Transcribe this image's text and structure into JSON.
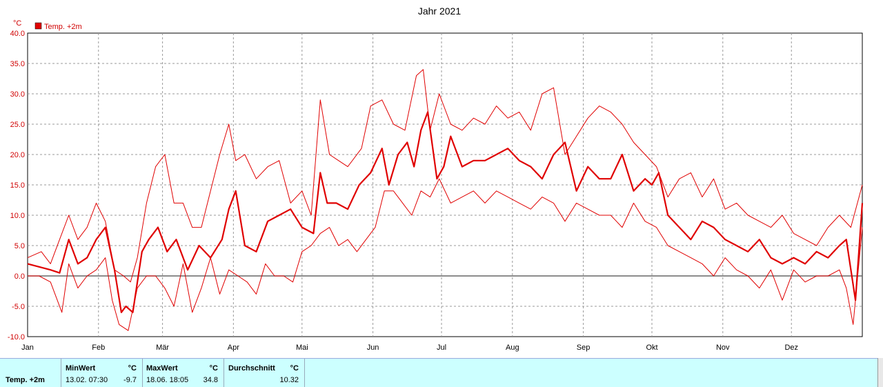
{
  "chart_data": {
    "type": "line",
    "title": "Jahr 2021",
    "yunit": "°C",
    "ylim": [
      -10,
      40
    ],
    "yticks": [
      "-10.0",
      "-5.0",
      "0.0",
      "5.0",
      "10.0",
      "15.0",
      "20.0",
      "25.0",
      "30.0",
      "35.0",
      "40.0"
    ],
    "x_range_days": [
      0,
      365
    ],
    "month_ticks": [
      {
        "label": "Jan",
        "day": 0
      },
      {
        "label": "Feb",
        "day": 31
      },
      {
        "label": "Mär",
        "day": 59
      },
      {
        "label": "Apr",
        "day": 90
      },
      {
        "label": "Mai",
        "day": 120
      },
      {
        "label": "Jun",
        "day": 151
      },
      {
        "label": "Jul",
        "day": 181
      },
      {
        "label": "Aug",
        "day": 212
      },
      {
        "label": "Sep",
        "day": 243
      },
      {
        "label": "Okt",
        "day": 273
      },
      {
        "label": "Nov",
        "day": 304
      },
      {
        "label": "Dez",
        "day": 334
      }
    ],
    "legend": {
      "label": "Temp. +2m",
      "color": "#e00000",
      "position": "top-left"
    },
    "grid": true,
    "series": [
      {
        "name": "Temp. +2m",
        "role": "mean",
        "color": "#e00000",
        "x": [
          0,
          5,
          10,
          14,
          18,
          22,
          26,
          30,
          34,
          38,
          41,
          43,
          46,
          50,
          53,
          57,
          61,
          65,
          70,
          75,
          80,
          85,
          88,
          91,
          95,
          100,
          105,
          110,
          115,
          120,
          125,
          128,
          131,
          135,
          140,
          145,
          150,
          155,
          158,
          162,
          166,
          169,
          172,
          175,
          179,
          182,
          185,
          190,
          195,
          200,
          205,
          210,
          215,
          220,
          225,
          230,
          235,
          240,
          245,
          250,
          255,
          260,
          265,
          270,
          273,
          276,
          280,
          285,
          290,
          295,
          300,
          305,
          310,
          315,
          320,
          325,
          330,
          335,
          340,
          345,
          350,
          355,
          358,
          362,
          365
        ],
        "y": [
          2,
          1.5,
          1,
          0.5,
          6,
          2,
          3,
          6,
          8,
          1,
          -6,
          -5,
          -6,
          4,
          6,
          8,
          4,
          6,
          1,
          5,
          3,
          6,
          11,
          14,
          5,
          4,
          9,
          10,
          11,
          8,
          7,
          17,
          12,
          12,
          11,
          15,
          17,
          21,
          15,
          20,
          22,
          18,
          24,
          27,
          16,
          18,
          23,
          18,
          19,
          19,
          20,
          21,
          19,
          18,
          16,
          20,
          22,
          14,
          18,
          16,
          16,
          20,
          14,
          16,
          15,
          17,
          10,
          8,
          6,
          9,
          8,
          6,
          5,
          4,
          6,
          3,
          2,
          3,
          2,
          4,
          3,
          5,
          6,
          -4,
          12
        ]
      },
      {
        "name": "",
        "role": "max",
        "color": "#e00000",
        "x": [
          0,
          6,
          10,
          14,
          18,
          22,
          26,
          30,
          34,
          38,
          42,
          45,
          48,
          52,
          56,
          60,
          64,
          68,
          72,
          76,
          80,
          84,
          88,
          91,
          95,
          100,
          105,
          110,
          115,
          120,
          124,
          128,
          132,
          136,
          140,
          146,
          150,
          155,
          160,
          165,
          170,
          173,
          176,
          180,
          185,
          190,
          195,
          200,
          205,
          210,
          215,
          220,
          225,
          230,
          235,
          240,
          245,
          250,
          255,
          260,
          265,
          270,
          275,
          280,
          285,
          290,
          295,
          300,
          305,
          310,
          315,
          320,
          325,
          330,
          335,
          340,
          345,
          350,
          355,
          360,
          365
        ],
        "y": [
          3,
          4,
          2,
          6,
          10,
          6,
          8,
          12,
          9,
          1,
          0,
          -1,
          3,
          12,
          18,
          20,
          12,
          12,
          8,
          8,
          14,
          20,
          25,
          19,
          20,
          16,
          18,
          19,
          12,
          14,
          10,
          29,
          20,
          19,
          18,
          21,
          28,
          29,
          25,
          24,
          33,
          34,
          24,
          30,
          25,
          24,
          26,
          25,
          28,
          26,
          27,
          24,
          30,
          31,
          20,
          23,
          26,
          28,
          27,
          25,
          22,
          20,
          18,
          13,
          16,
          17,
          13,
          16,
          11,
          12,
          10,
          9,
          8,
          10,
          7,
          6,
          5,
          8,
          10,
          8,
          15
        ]
      },
      {
        "name": "",
        "role": "min",
        "color": "#e00000",
        "x": [
          0,
          5,
          10,
          15,
          18,
          22,
          26,
          30,
          34,
          37,
          40,
          44,
          48,
          52,
          56,
          60,
          64,
          68,
          72,
          76,
          80,
          84,
          88,
          92,
          96,
          100,
          104,
          108,
          112,
          116,
          120,
          124,
          128,
          132,
          136,
          140,
          144,
          148,
          152,
          156,
          160,
          164,
          168,
          172,
          176,
          180,
          185,
          190,
          195,
          200,
          205,
          210,
          215,
          220,
          225,
          230,
          235,
          240,
          245,
          250,
          255,
          260,
          265,
          270,
          275,
          280,
          285,
          290,
          295,
          300,
          305,
          310,
          315,
          320,
          325,
          330,
          335,
          340,
          345,
          350,
          355,
          358,
          361,
          365
        ],
        "y": [
          0,
          0,
          -1,
          -6,
          2,
          -2,
          0,
          1,
          3,
          -4,
          -8,
          -9,
          -2,
          0,
          0,
          -2,
          -5,
          2,
          -6,
          -2,
          3,
          -3,
          1,
          0,
          -1,
          -3,
          2,
          0,
          0,
          -1,
          4,
          5,
          7,
          8,
          5,
          6,
          4,
          6,
          8,
          14,
          14,
          12,
          10,
          14,
          13,
          16,
          12,
          13,
          14,
          12,
          14,
          13,
          12,
          11,
          13,
          12,
          9,
          12,
          11,
          10,
          10,
          8,
          12,
          9,
          8,
          5,
          4,
          3,
          2,
          0,
          3,
          1,
          0,
          -2,
          1,
          -4,
          1,
          -1,
          0,
          0,
          1,
          -2,
          -8,
          8
        ]
      }
    ]
  },
  "stats": {
    "row_label": "Temp. +2m",
    "min_header": "MinWert",
    "min_unit": "°C",
    "min_time": "13.02.  07:30",
    "min_value": "-9.7",
    "max_header": "MaxWert",
    "max_unit": "°C",
    "max_time": "18.06.  18:05",
    "max_value": "34.8",
    "avg_header": "Durchschnitt",
    "avg_unit": "°C",
    "avg_value": "10.32"
  }
}
